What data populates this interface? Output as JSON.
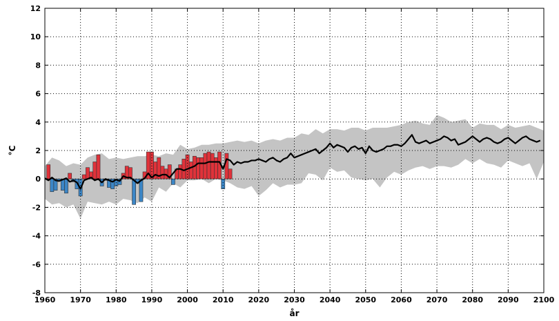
{
  "colors": {
    "warm_bar": "#e0323a",
    "cold_bar": "#3c86c6",
    "band": "#c4c4c4",
    "mean_line": "#000000",
    "title": "#6aa8e0"
  },
  "chart_data": {
    "type": "bar",
    "title": "",
    "xlabel": "år",
    "ylabel": "°C",
    "xlim": [
      1960,
      2100
    ],
    "ylim": [
      -8,
      12
    ],
    "x_ticks": [
      1960,
      1970,
      1980,
      1990,
      2000,
      2010,
      2020,
      2030,
      2040,
      2050,
      2060,
      2070,
      2080,
      2090,
      2100
    ],
    "y_ticks": [
      -8,
      -6,
      -4,
      -2,
      0,
      2,
      4,
      6,
      8,
      10,
      12
    ],
    "grid": true,
    "observed_anomalies": {
      "x": [
        1961,
        1962,
        1963,
        1964,
        1965,
        1966,
        1967,
        1968,
        1969,
        1970,
        1971,
        1972,
        1973,
        1974,
        1975,
        1976,
        1977,
        1978,
        1979,
        1980,
        1981,
        1982,
        1983,
        1984,
        1985,
        1986,
        1987,
        1988,
        1989,
        1990,
        1991,
        1992,
        1993,
        1994,
        1995,
        1996,
        1997,
        1998,
        1999,
        2000,
        2001,
        2002,
        2003,
        2004,
        2005,
        2006,
        2007,
        2008,
        2009,
        2010,
        2011,
        2012
      ],
      "values": [
        1.0,
        -0.9,
        -0.8,
        -0.1,
        -0.8,
        -1.0,
        0.4,
        -0.2,
        -0.7,
        -1.2,
        0.3,
        0.8,
        0.5,
        1.2,
        1.7,
        -0.5,
        -0.1,
        -0.6,
        -0.7,
        -0.5,
        -0.4,
        0.4,
        0.9,
        0.8,
        -1.8,
        -0.3,
        -1.6,
        0.5,
        1.9,
        1.9,
        1.2,
        1.5,
        0.9,
        0.7,
        1.0,
        -0.4,
        0.7,
        1.0,
        1.4,
        1.7,
        1.2,
        1.6,
        1.5,
        1.5,
        1.8,
        1.9,
        1.8,
        1.5,
        1.9,
        -0.7,
        1.8,
        0.7
      ]
    },
    "series": [
      {
        "x": [
          1960,
          1961,
          1962,
          1963,
          1964,
          1965,
          1966,
          1967,
          1968,
          1969,
          1970,
          1971,
          1972,
          1973,
          1974,
          1975,
          1976,
          1977,
          1978,
          1979,
          1980,
          1981,
          1982,
          1983,
          1984,
          1985,
          1986,
          1987,
          1988,
          1989,
          1990,
          1991,
          1992,
          1993,
          1994,
          1995,
          1996,
          1997,
          1998,
          1999,
          2000,
          2001,
          2002,
          2003,
          2004,
          2005,
          2006,
          2007,
          2008,
          2009,
          2010,
          2011,
          2012,
          2013,
          2014,
          2015,
          2016,
          2017,
          2018,
          2019,
          2020,
          2021,
          2022,
          2023,
          2024,
          2025,
          2026,
          2027,
          2028,
          2029,
          2030,
          2031,
          2032,
          2033,
          2034,
          2035,
          2036,
          2037,
          2038,
          2039,
          2040,
          2041,
          2042,
          2043,
          2044,
          2045,
          2046,
          2047,
          2048,
          2049,
          2050,
          2051,
          2052,
          2053,
          2054,
          2055,
          2056,
          2057,
          2058,
          2059,
          2060,
          2061,
          2062,
          2063,
          2064,
          2065,
          2066,
          2067,
          2068,
          2069,
          2070,
          2071,
          2072,
          2073,
          2074,
          2075,
          2076,
          2077,
          2078,
          2079,
          2080,
          2081,
          2082,
          2083,
          2084,
          2085,
          2086,
          2087,
          2088,
          2089,
          2090,
          2091,
          2092,
          2093,
          2094,
          2095,
          2096,
          2097,
          2098,
          2099
        ],
        "values": [
          0.05,
          -0.1,
          0.1,
          -0.1,
          -0.15,
          -0.05,
          0.05,
          -0.2,
          -0.1,
          -0.25,
          -0.7,
          -0.1,
          0.0,
          0.1,
          -0.1,
          0.0,
          -0.25,
          0.0,
          -0.1,
          -0.2,
          -0.05,
          -0.15,
          0.2,
          0.1,
          0.1,
          -0.1,
          -0.3,
          -0.1,
          0.05,
          0.4,
          0.1,
          0.3,
          0.2,
          0.3,
          0.3,
          0.1,
          0.4,
          0.7,
          0.7,
          0.6,
          0.7,
          0.8,
          0.9,
          1.1,
          1.1,
          1.1,
          1.2,
          1.2,
          1.2,
          1.2,
          0.7,
          1.4,
          1.3,
          1.0,
          1.2,
          1.1,
          1.2,
          1.2,
          1.3,
          1.3,
          1.4,
          1.3,
          1.2,
          1.4,
          1.5,
          1.3,
          1.2,
          1.4,
          1.5,
          1.8,
          1.5,
          1.6,
          1.7,
          1.8,
          1.9,
          2.0,
          2.1,
          1.8,
          2.0,
          2.2,
          2.5,
          2.2,
          2.4,
          2.3,
          2.2,
          1.9,
          2.2,
          2.3,
          2.1,
          2.2,
          1.8,
          2.3,
          2.0,
          1.9,
          2.0,
          2.1,
          2.3,
          2.3,
          2.4,
          2.4,
          2.3,
          2.5,
          2.8,
          3.1,
          2.6,
          2.5,
          2.6,
          2.7,
          2.5,
          2.6,
          2.7,
          2.8,
          3.0,
          2.9,
          2.7,
          2.8,
          2.4,
          2.5,
          2.6,
          2.8,
          3.0,
          2.8,
          2.6,
          2.8,
          2.9,
          2.8,
          2.6,
          2.5,
          2.6,
          2.8,
          2.9,
          2.7,
          2.5,
          2.7,
          2.9,
          3.0,
          2.8,
          2.7,
          2.6,
          2.7
        ]
      }
    ],
    "band": {
      "x": [
        1960,
        1962,
        1964,
        1966,
        1968,
        1970,
        1972,
        1974,
        1976,
        1978,
        1980,
        1982,
        1984,
        1986,
        1988,
        1990,
        1992,
        1994,
        1996,
        1998,
        2000,
        2002,
        2004,
        2006,
        2008,
        2010,
        2012,
        2014,
        2016,
        2018,
        2020,
        2022,
        2024,
        2026,
        2028,
        2030,
        2032,
        2034,
        2036,
        2038,
        2040,
        2042,
        2044,
        2046,
        2048,
        2050,
        2052,
        2054,
        2056,
        2058,
        2060,
        2062,
        2064,
        2066,
        2068,
        2070,
        2072,
        2074,
        2076,
        2078,
        2080,
        2082,
        2084,
        2086,
        2088,
        2090,
        2092,
        2094,
        2096,
        2098,
        2100
      ],
      "upper": [
        0.9,
        1.5,
        1.3,
        0.9,
        1.1,
        1.0,
        1.5,
        1.7,
        1.8,
        1.4,
        1.5,
        1.4,
        1.5,
        1.6,
        1.6,
        1.7,
        1.6,
        1.8,
        1.7,
        2.4,
        2.1,
        2.2,
        2.4,
        2.4,
        2.5,
        2.5,
        2.6,
        2.7,
        2.6,
        2.7,
        2.5,
        2.7,
        2.8,
        2.7,
        2.9,
        2.9,
        3.2,
        3.1,
        3.5,
        3.2,
        3.5,
        3.5,
        3.4,
        3.6,
        3.6,
        3.4,
        3.6,
        3.6,
        3.6,
        3.7,
        3.8,
        4.0,
        4.1,
        3.9,
        3.8,
        4.5,
        4.3,
        4.0,
        4.1,
        4.2,
        3.6,
        3.9,
        3.8,
        3.8,
        3.5,
        3.8,
        3.6,
        3.7,
        3.8,
        3.6,
        3.4
      ],
      "lower": [
        -1.4,
        -1.8,
        -1.7,
        -2.0,
        -1.8,
        -2.8,
        -1.6,
        -1.7,
        -1.8,
        -1.6,
        -1.8,
        -1.4,
        -1.5,
        -1.7,
        -1.3,
        -1.6,
        -0.6,
        -0.9,
        -0.3,
        -0.6,
        -0.1,
        -0.1,
        0.0,
        -0.3,
        0.0,
        -0.1,
        -0.3,
        -0.6,
        -0.7,
        -0.5,
        -1.2,
        -0.8,
        -0.3,
        -0.6,
        -0.4,
        -0.4,
        -0.3,
        0.4,
        0.3,
        -0.1,
        0.8,
        0.5,
        0.6,
        0.1,
        0.0,
        -0.1,
        0.0,
        -0.6,
        0.1,
        0.5,
        0.3,
        0.6,
        0.8,
        0.9,
        0.7,
        0.9,
        0.9,
        0.8,
        1.0,
        1.4,
        1.1,
        1.4,
        1.1,
        1.0,
        0.8,
        1.3,
        1.1,
        0.9,
        1.1,
        0.0,
        1.2
      ]
    }
  }
}
